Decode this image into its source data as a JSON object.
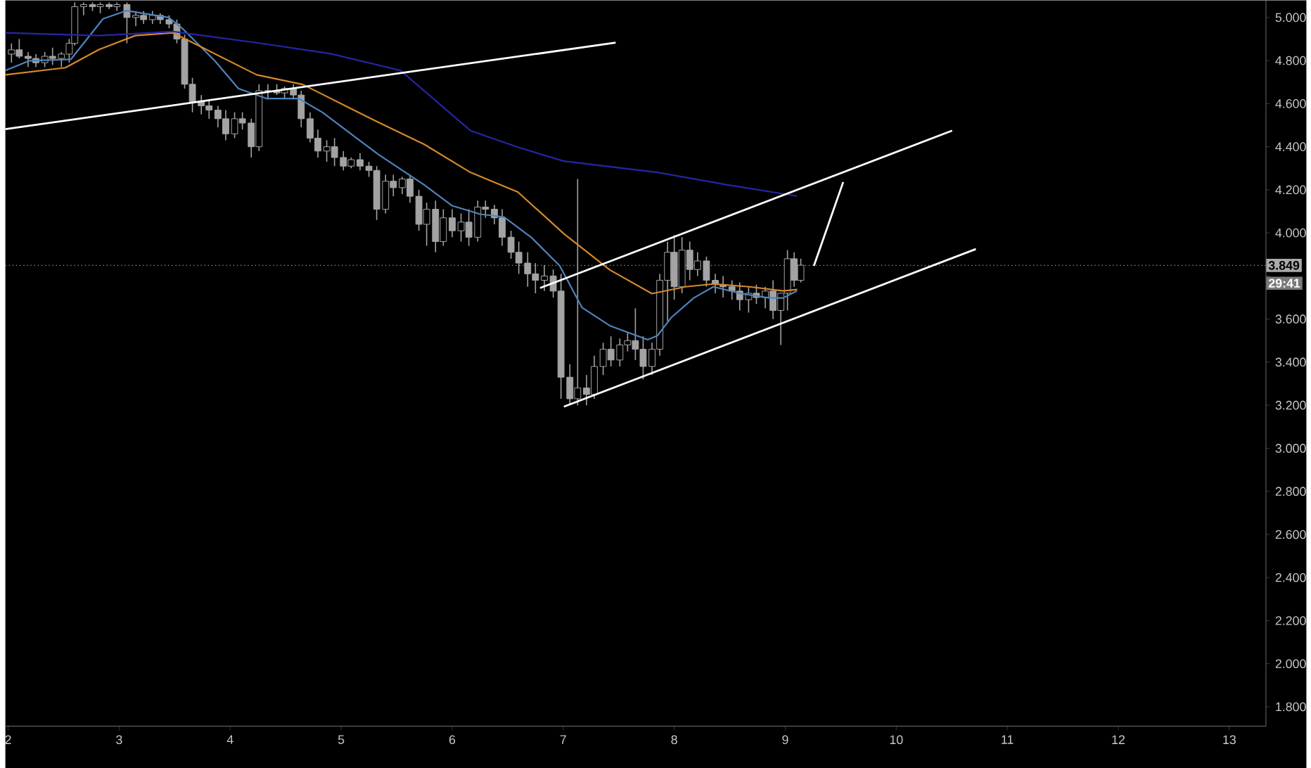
{
  "chart_data": {
    "type": "candlestick",
    "x": [
      2.03,
      2.1,
      2.18,
      2.25,
      2.33,
      2.4,
      2.48,
      2.55,
      2.6,
      2.68,
      2.76,
      2.83,
      2.91,
      2.98,
      3.07,
      3.15,
      3.22,
      3.3,
      3.37,
      3.45,
      3.52,
      3.59,
      3.66,
      3.74,
      3.81,
      3.89,
      3.96,
      4.04,
      4.11,
      4.19,
      4.26,
      4.34,
      4.42,
      4.49,
      4.57,
      4.64,
      4.72,
      4.79,
      4.87,
      4.94,
      5.02,
      5.09,
      5.17,
      5.25,
      5.32,
      5.4,
      5.47,
      5.55,
      5.62,
      5.7,
      5.77,
      5.85,
      5.92,
      6.0,
      6.08,
      6.15,
      6.23,
      6.3,
      6.38,
      6.45,
      6.53,
      6.6,
      6.68,
      6.75,
      6.83,
      6.91,
      6.98,
      7.06,
      7.13,
      7.21,
      7.28,
      7.36,
      7.43,
      7.51,
      7.58,
      7.65,
      7.72,
      7.8,
      7.87,
      7.94,
      8.0,
      8.07,
      8.14,
      8.21,
      8.29,
      8.37,
      8.44,
      8.52,
      8.59,
      8.67,
      8.74,
      8.82,
      8.89,
      8.96,
      9.02,
      9.08,
      9.14
    ],
    "ohlc": [
      [
        4.83,
        4.88,
        4.79,
        4.85
      ],
      [
        4.85,
        4.9,
        4.81,
        4.82
      ],
      [
        4.82,
        4.84,
        4.77,
        4.81
      ],
      [
        4.81,
        4.83,
        4.77,
        4.79
      ],
      [
        4.79,
        4.84,
        4.77,
        4.82
      ],
      [
        4.82,
        4.86,
        4.78,
        4.81
      ],
      [
        4.81,
        4.84,
        4.77,
        4.83
      ],
      [
        4.83,
        4.9,
        4.79,
        4.88
      ],
      [
        4.88,
        5.07,
        4.87,
        5.05
      ],
      [
        5.05,
        5.07,
        5.01,
        5.06
      ],
      [
        5.06,
        5.07,
        5.03,
        5.05
      ],
      [
        5.05,
        5.07,
        5.02,
        5.06
      ],
      [
        5.06,
        5.07,
        5.04,
        5.05
      ],
      [
        5.05,
        5.07,
        5.03,
        5.06
      ],
      [
        5.06,
        5.07,
        4.88,
        5.0
      ],
      [
        5.0,
        5.03,
        4.96,
        5.01
      ],
      [
        5.01,
        5.03,
        4.97,
        4.99
      ],
      [
        4.99,
        5.03,
        4.97,
        5.01
      ],
      [
        5.01,
        5.02,
        4.97,
        4.99
      ],
      [
        4.99,
        5.01,
        4.95,
        4.97
      ],
      [
        4.97,
        4.99,
        4.88,
        4.9
      ],
      [
        4.9,
        4.92,
        4.67,
        4.69
      ],
      [
        4.69,
        4.72,
        4.56,
        4.61
      ],
      [
        4.61,
        4.64,
        4.55,
        4.59
      ],
      [
        4.59,
        4.62,
        4.53,
        4.57
      ],
      [
        4.57,
        4.59,
        4.49,
        4.53
      ],
      [
        4.53,
        4.57,
        4.43,
        4.46
      ],
      [
        4.46,
        4.56,
        4.44,
        4.53
      ],
      [
        4.53,
        4.56,
        4.48,
        4.51
      ],
      [
        4.51,
        4.53,
        4.35,
        4.4
      ],
      [
        4.4,
        4.69,
        4.38,
        4.66
      ],
      [
        4.66,
        4.69,
        4.62,
        4.66
      ],
      [
        4.66,
        4.69,
        4.64,
        4.65
      ],
      [
        4.65,
        4.68,
        4.62,
        4.67
      ],
      [
        4.67,
        4.69,
        4.62,
        4.64
      ],
      [
        4.64,
        4.66,
        4.49,
        4.53
      ],
      [
        4.53,
        4.56,
        4.42,
        4.44
      ],
      [
        4.44,
        4.48,
        4.35,
        4.38
      ],
      [
        4.38,
        4.43,
        4.33,
        4.4
      ],
      [
        4.4,
        4.44,
        4.31,
        4.35
      ],
      [
        4.35,
        4.38,
        4.29,
        4.31
      ],
      [
        4.31,
        4.35,
        4.3,
        4.34
      ],
      [
        4.34,
        4.37,
        4.29,
        4.31
      ],
      [
        4.31,
        4.33,
        4.26,
        4.29
      ],
      [
        4.29,
        4.31,
        4.06,
        4.11
      ],
      [
        4.11,
        4.27,
        4.09,
        4.24
      ],
      [
        4.24,
        4.27,
        4.17,
        4.21
      ],
      [
        4.21,
        4.26,
        4.18,
        4.25
      ],
      [
        4.25,
        4.27,
        4.14,
        4.17
      ],
      [
        4.17,
        4.2,
        4.01,
        4.04
      ],
      [
        4.04,
        4.14,
        3.94,
        4.11
      ],
      [
        4.11,
        4.15,
        3.91,
        3.96
      ],
      [
        3.96,
        4.11,
        3.94,
        4.07
      ],
      [
        4.07,
        4.11,
        3.98,
        4.01
      ],
      [
        4.01,
        4.09,
        3.96,
        4.05
      ],
      [
        4.05,
        4.11,
        3.94,
        3.98
      ],
      [
        3.98,
        4.15,
        3.96,
        4.12
      ],
      [
        4.12,
        4.15,
        4.07,
        4.11
      ],
      [
        4.11,
        4.13,
        4.04,
        4.07
      ],
      [
        4.07,
        4.11,
        3.94,
        3.98
      ],
      [
        3.98,
        4.01,
        3.88,
        3.91
      ],
      [
        3.91,
        3.96,
        3.81,
        3.86
      ],
      [
        3.86,
        3.91,
        3.75,
        3.81
      ],
      [
        3.81,
        3.86,
        3.72,
        3.78
      ],
      [
        3.78,
        3.85,
        3.73,
        3.8
      ],
      [
        3.8,
        3.83,
        3.7,
        3.73
      ],
      [
        3.73,
        3.81,
        3.23,
        3.33
      ],
      [
        3.33,
        3.39,
        3.2,
        3.23
      ],
      [
        3.23,
        4.25,
        3.2,
        3.28
      ],
      [
        3.28,
        3.34,
        3.2,
        3.25
      ],
      [
        3.25,
        3.43,
        3.23,
        3.38
      ],
      [
        3.38,
        3.49,
        3.34,
        3.46
      ],
      [
        3.46,
        3.52,
        3.38,
        3.41
      ],
      [
        3.41,
        3.51,
        3.38,
        3.48
      ],
      [
        3.48,
        3.54,
        3.45,
        3.5
      ],
      [
        3.5,
        3.65,
        3.41,
        3.46
      ],
      [
        3.46,
        3.52,
        3.32,
        3.38
      ],
      [
        3.38,
        3.49,
        3.34,
        3.46
      ],
      [
        3.46,
        3.81,
        3.43,
        3.78
      ],
      [
        3.78,
        3.96,
        3.59,
        3.91
      ],
      [
        3.91,
        3.99,
        3.69,
        3.75
      ],
      [
        3.75,
        3.98,
        3.72,
        3.92
      ],
      [
        3.92,
        3.96,
        3.78,
        3.83
      ],
      [
        3.83,
        3.91,
        3.8,
        3.87
      ],
      [
        3.87,
        3.89,
        3.75,
        3.78
      ],
      [
        3.78,
        3.81,
        3.72,
        3.76
      ],
      [
        3.76,
        3.8,
        3.7,
        3.75
      ],
      [
        3.75,
        3.78,
        3.69,
        3.73
      ],
      [
        3.73,
        3.77,
        3.64,
        3.69
      ],
      [
        3.69,
        3.75,
        3.63,
        3.72
      ],
      [
        3.72,
        3.76,
        3.67,
        3.7
      ],
      [
        3.7,
        3.75,
        3.65,
        3.73
      ],
      [
        3.73,
        3.78,
        3.6,
        3.64
      ],
      [
        3.64,
        3.72,
        3.48,
        3.72
      ],
      [
        3.72,
        3.92,
        3.64,
        3.88
      ],
      [
        3.88,
        3.91,
        3.75,
        3.78
      ],
      [
        3.78,
        3.88,
        3.77,
        3.85
      ]
    ],
    "color": "#a3a3a3",
    "series": [
      {
        "type": "line",
        "color": "#4f83bd",
        "x": [
          1.975,
          2.189,
          2.566,
          2.855,
          3.069,
          3.447,
          3.572,
          3.862,
          4.075,
          4.327,
          4.616,
          4.83,
          5.333,
          5.748,
          6.0,
          6.252,
          6.465,
          6.717,
          6.969,
          7.17,
          7.421,
          7.761,
          7.849,
          7.975,
          8.176,
          8.352,
          8.604,
          8.855,
          8.981,
          9.107
        ],
        "values": [
          4.754,
          4.799,
          4.806,
          4.994,
          5.032,
          5.0,
          4.948,
          4.799,
          4.67,
          4.624,
          4.624,
          4.56,
          4.365,
          4.223,
          4.126,
          4.087,
          4.074,
          3.977,
          3.847,
          3.653,
          3.569,
          3.504,
          3.523,
          3.608,
          3.698,
          3.75,
          3.718,
          3.698,
          3.698,
          3.731
        ]
      },
      {
        "type": "line",
        "color": "#d4892c",
        "x": [
          1.975,
          2.516,
          2.818,
          3.145,
          3.484,
          3.736,
          4.239,
          4.654,
          5.333,
          5.748,
          6.164,
          6.591,
          7.006,
          7.421,
          7.799,
          8.101,
          8.352,
          8.679,
          8.981,
          9.107
        ],
        "values": [
          4.734,
          4.767,
          4.851,
          4.916,
          4.929,
          4.864,
          4.734,
          4.689,
          4.514,
          4.411,
          4.281,
          4.19,
          3.996,
          3.828,
          3.718,
          3.75,
          3.763,
          3.75,
          3.731,
          3.737
        ]
      },
      {
        "type": "line",
        "color": "#2626a6",
        "x": [
          1.975,
          2.818,
          3.484,
          4.239,
          4.906,
          5.535,
          6.164,
          6.591,
          7.006,
          7.849,
          8.478,
          9.107
        ],
        "values": [
          4.929,
          4.916,
          4.935,
          4.883,
          4.832,
          4.754,
          4.475,
          4.398,
          4.333,
          4.281,
          4.223,
          4.171
        ]
      },
      {
        "type": "line",
        "color": "#ffffff",
        "x": [
          1.975,
          7.472
        ],
        "values": [
          4.482,
          4.883
        ]
      },
      {
        "type": "line",
        "color": "#ffffff",
        "x": [
          6.792,
          10.503
        ],
        "values": [
          3.744,
          4.475
        ]
      },
      {
        "type": "line",
        "color": "#ffffff",
        "x": [
          7.006,
          10.717
        ],
        "values": [
          3.193,
          3.925
        ]
      },
      {
        "type": "line",
        "color": "#ffffff",
        "x": [
          9.258,
          9.522
        ],
        "values": [
          3.847,
          4.236
        ]
      }
    ],
    "xlim": [
      1.975,
      13.33
    ],
    "ylim": [
      1.71,
      5.08
    ],
    "xticks": [
      2,
      3,
      4,
      5,
      6,
      7,
      8,
      9,
      10,
      11,
      12,
      13
    ],
    "yticks": [
      {
        "value": 1.8,
        "label": "1.800"
      },
      {
        "value": 2.0,
        "label": "2.000"
      },
      {
        "value": 2.2,
        "label": "2.200"
      },
      {
        "value": 2.4,
        "label": "2.400"
      },
      {
        "value": 2.6,
        "label": "2.600"
      },
      {
        "value": 2.8,
        "label": "2.800"
      },
      {
        "value": 3.0,
        "label": "3.000"
      },
      {
        "value": 3.2,
        "label": "3.200"
      },
      {
        "value": 3.4,
        "label": "3.400"
      },
      {
        "value": 3.6,
        "label": "3.600"
      },
      {
        "value": 3.8,
        "label": null
      },
      {
        "value": 4.0,
        "label": "4.000"
      },
      {
        "value": 4.2,
        "label": "4.200"
      },
      {
        "value": 4.4,
        "label": "4.400"
      },
      {
        "value": 4.6,
        "label": "4.600"
      },
      {
        "value": 4.8,
        "label": "4.800"
      },
      {
        "value": 5.0,
        "label": "5.000"
      }
    ],
    "ref_lines": [
      {
        "axis": "y",
        "value": 3.849,
        "label": "3.849",
        "color": "#aaaaaa",
        "line_style": "dotted"
      }
    ],
    "annotations": [
      "29:41"
    ]
  }
}
